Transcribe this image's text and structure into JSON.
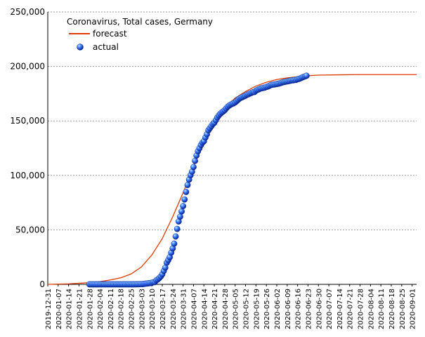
{
  "chart_data": {
    "type": "line",
    "title": "Coronavirus, Total cases, Germany",
    "xlabel": "",
    "ylabel": "",
    "x_axis": {
      "type": "date",
      "start": "2019-12-31",
      "end": "2020-09-04",
      "tick_labels": [
        "2019-12-31",
        "2020-01-07",
        "2020-01-14",
        "2020-01-21",
        "2020-01-28",
        "2020-02-04",
        "2020-02-11",
        "2020-02-18",
        "2020-02-25",
        "2020-03-03",
        "2020-03-10",
        "2020-03-17",
        "2020-03-24",
        "2020-03-31",
        "2020-04-07",
        "2020-04-14",
        "2020-04-21",
        "2020-04-28",
        "2020-05-05",
        "2020-05-12",
        "2020-05-19",
        "2020-05-26",
        "2020-06-02",
        "2020-06-09",
        "2020-06-16",
        "2020-06-23",
        "2020-06-30",
        "2020-07-07",
        "2020-07-14",
        "2020-07-21",
        "2020-07-28",
        "2020-08-04",
        "2020-08-11",
        "2020-08-18",
        "2020-08-25",
        "2020-09-01"
      ]
    },
    "y_axis": {
      "ylim": [
        0,
        250000
      ],
      "tick_labels": [
        "0",
        "50,000",
        "100,000",
        "150,000",
        "200,000",
        "250,000"
      ]
    },
    "grid": "horizontal dashed",
    "legend": {
      "placement": "top-left"
    },
    "series": [
      {
        "name": "forecast",
        "kind": "line",
        "color": "#e03c00",
        "points": [
          [
            "2019-12-31",
            0
          ],
          [
            "2020-01-14",
            500
          ],
          [
            "2020-01-28",
            1500
          ],
          [
            "2020-02-04",
            2500
          ],
          [
            "2020-02-11",
            4000
          ],
          [
            "2020-02-18",
            6000
          ],
          [
            "2020-02-25",
            9500
          ],
          [
            "2020-03-03",
            16000
          ],
          [
            "2020-03-10",
            27000
          ],
          [
            "2020-03-17",
            42000
          ],
          [
            "2020-03-24",
            62000
          ],
          [
            "2020-03-31",
            84000
          ],
          [
            "2020-04-07",
            108000
          ],
          [
            "2020-04-14",
            130000
          ],
          [
            "2020-04-21",
            148000
          ],
          [
            "2020-04-28",
            162000
          ],
          [
            "2020-05-05",
            171000
          ],
          [
            "2020-05-12",
            177000
          ],
          [
            "2020-05-19",
            182000
          ],
          [
            "2020-05-26",
            185500
          ],
          [
            "2020-06-02",
            188000
          ],
          [
            "2020-06-09",
            189500
          ],
          [
            "2020-06-16",
            190500
          ],
          [
            "2020-06-23",
            191500
          ],
          [
            "2020-06-30",
            192000
          ],
          [
            "2020-07-14",
            192300
          ],
          [
            "2020-07-28",
            192500
          ],
          [
            "2020-09-04",
            192500
          ]
        ]
      },
      {
        "name": "actual",
        "kind": "scatter",
        "color": "#1f4fd1",
        "points": [
          [
            "2020-01-28",
            4
          ],
          [
            "2020-01-29",
            4
          ],
          [
            "2020-01-30",
            4
          ],
          [
            "2020-01-31",
            5
          ],
          [
            "2020-02-01",
            7
          ],
          [
            "2020-02-02",
            8
          ],
          [
            "2020-02-03",
            10
          ],
          [
            "2020-02-04",
            12
          ],
          [
            "2020-02-05",
            12
          ],
          [
            "2020-02-06",
            12
          ],
          [
            "2020-02-07",
            13
          ],
          [
            "2020-02-08",
            13
          ],
          [
            "2020-02-09",
            14
          ],
          [
            "2020-02-10",
            14
          ],
          [
            "2020-02-11",
            16
          ],
          [
            "2020-02-12",
            16
          ],
          [
            "2020-02-13",
            16
          ],
          [
            "2020-02-14",
            16
          ],
          [
            "2020-02-15",
            16
          ],
          [
            "2020-02-16",
            16
          ],
          [
            "2020-02-17",
            16
          ],
          [
            "2020-02-18",
            16
          ],
          [
            "2020-02-19",
            16
          ],
          [
            "2020-02-20",
            16
          ],
          [
            "2020-02-21",
            16
          ],
          [
            "2020-02-22",
            16
          ],
          [
            "2020-02-23",
            16
          ],
          [
            "2020-02-24",
            16
          ],
          [
            "2020-02-25",
            18
          ],
          [
            "2020-02-26",
            27
          ],
          [
            "2020-02-27",
            46
          ],
          [
            "2020-02-28",
            48
          ],
          [
            "2020-02-29",
            79
          ],
          [
            "2020-03-01",
            130
          ],
          [
            "2020-03-02",
            159
          ],
          [
            "2020-03-03",
            196
          ],
          [
            "2020-03-04",
            262
          ],
          [
            "2020-03-05",
            482
          ],
          [
            "2020-03-06",
            670
          ],
          [
            "2020-03-07",
            799
          ],
          [
            "2020-03-08",
            1040
          ],
          [
            "2020-03-09",
            1176
          ],
          [
            "2020-03-10",
            1457
          ],
          [
            "2020-03-11",
            1908
          ],
          [
            "2020-03-12",
            2078
          ],
          [
            "2020-03-13",
            3675
          ],
          [
            "2020-03-14",
            4585
          ],
          [
            "2020-03-15",
            5795
          ],
          [
            "2020-03-16",
            7272
          ],
          [
            "2020-03-17",
            9257
          ],
          [
            "2020-03-18",
            12327
          ],
          [
            "2020-03-19",
            15320
          ],
          [
            "2020-03-20",
            19848
          ],
          [
            "2020-03-21",
            22213
          ],
          [
            "2020-03-22",
            24873
          ],
          [
            "2020-03-23",
            29056
          ],
          [
            "2020-03-24",
            32986
          ],
          [
            "2020-03-25",
            37323
          ],
          [
            "2020-03-26",
            43938
          ],
          [
            "2020-03-27",
            50871
          ],
          [
            "2020-03-28",
            57695
          ],
          [
            "2020-03-29",
            62095
          ],
          [
            "2020-03-30",
            66885
          ],
          [
            "2020-03-31",
            71808
          ],
          [
            "2020-04-01",
            77872
          ],
          [
            "2020-04-02",
            84794
          ],
          [
            "2020-04-03",
            91159
          ],
          [
            "2020-04-04",
            96092
          ],
          [
            "2020-04-05",
            100123
          ],
          [
            "2020-04-06",
            103375
          ],
          [
            "2020-04-07",
            107663
          ],
          [
            "2020-04-08",
            113296
          ],
          [
            "2020-04-09",
            118181
          ],
          [
            "2020-04-10",
            122171
          ],
          [
            "2020-04-11",
            124908
          ],
          [
            "2020-04-12",
            127854
          ],
          [
            "2020-04-13",
            130072
          ],
          [
            "2020-04-14",
            131359
          ],
          [
            "2020-04-15",
            134753
          ],
          [
            "2020-04-16",
            137698
          ],
          [
            "2020-04-17",
            141397
          ],
          [
            "2020-04-18",
            143342
          ],
          [
            "2020-04-19",
            145184
          ],
          [
            "2020-04-20",
            147065
          ],
          [
            "2020-04-21",
            148291
          ],
          [
            "2020-04-22",
            150648
          ],
          [
            "2020-04-23",
            153129
          ],
          [
            "2020-04-24",
            154999
          ],
          [
            "2020-04-25",
            156513
          ],
          [
            "2020-04-26",
            157770
          ],
          [
            "2020-04-27",
            158758
          ],
          [
            "2020-04-28",
            159912
          ],
          [
            "2020-04-29",
            161539
          ],
          [
            "2020-04-30",
            163009
          ],
          [
            "2020-05-01",
            164077
          ],
          [
            "2020-05-02",
            164967
          ],
          [
            "2020-05-03",
            165664
          ],
          [
            "2020-05-04",
            166152
          ],
          [
            "2020-05-05",
            167007
          ],
          [
            "2020-05-06",
            168162
          ],
          [
            "2020-05-07",
            169430
          ],
          [
            "2020-05-08",
            170588
          ],
          [
            "2020-05-09",
            171324
          ],
          [
            "2020-05-10",
            171879
          ],
          [
            "2020-05-11",
            172576
          ],
          [
            "2020-05-12",
            173171
          ],
          [
            "2020-05-13",
            174098
          ],
          [
            "2020-05-14",
            174478
          ],
          [
            "2020-05-15",
            175233
          ],
          [
            "2020-05-16",
            175752
          ],
          [
            "2020-05-17",
            176369
          ],
          [
            "2020-05-18",
            176551
          ],
          [
            "2020-05-19",
            177778
          ],
          [
            "2020-05-20",
            178473
          ],
          [
            "2020-05-21",
            179021
          ],
          [
            "2020-05-22",
            179710
          ],
          [
            "2020-05-23",
            179986
          ],
          [
            "2020-05-24",
            180328
          ],
          [
            "2020-05-25",
            180600
          ],
          [
            "2020-05-26",
            181200
          ],
          [
            "2020-05-27",
            181524
          ],
          [
            "2020-05-28",
            182196
          ],
          [
            "2020-05-29",
            182922
          ],
          [
            "2020-05-30",
            183189
          ],
          [
            "2020-05-31",
            183410
          ],
          [
            "2020-06-01",
            183594
          ],
          [
            "2020-06-02",
            183879
          ],
          [
            "2020-06-03",
            184121
          ],
          [
            "2020-06-04",
            184472
          ],
          [
            "2020-06-05",
            184924
          ],
          [
            "2020-06-06",
            185450
          ],
          [
            "2020-06-07",
            185750
          ],
          [
            "2020-06-08",
            186022
          ],
          [
            "2020-06-09",
            186269
          ],
          [
            "2020-06-10",
            186506
          ],
          [
            "2020-06-11",
            186839
          ],
          [
            "2020-06-12",
            187226
          ],
          [
            "2020-06-13",
            187267
          ],
          [
            "2020-06-14",
            187518
          ],
          [
            "2020-06-15",
            187682
          ],
          [
            "2020-06-16",
            188252
          ],
          [
            "2020-06-17",
            188604
          ],
          [
            "2020-06-18",
            189135
          ],
          [
            "2020-06-19",
            189822
          ],
          [
            "2020-06-20",
            190359
          ],
          [
            "2020-06-21",
            190862
          ],
          [
            "2020-06-22",
            191449
          ]
        ]
      }
    ]
  }
}
